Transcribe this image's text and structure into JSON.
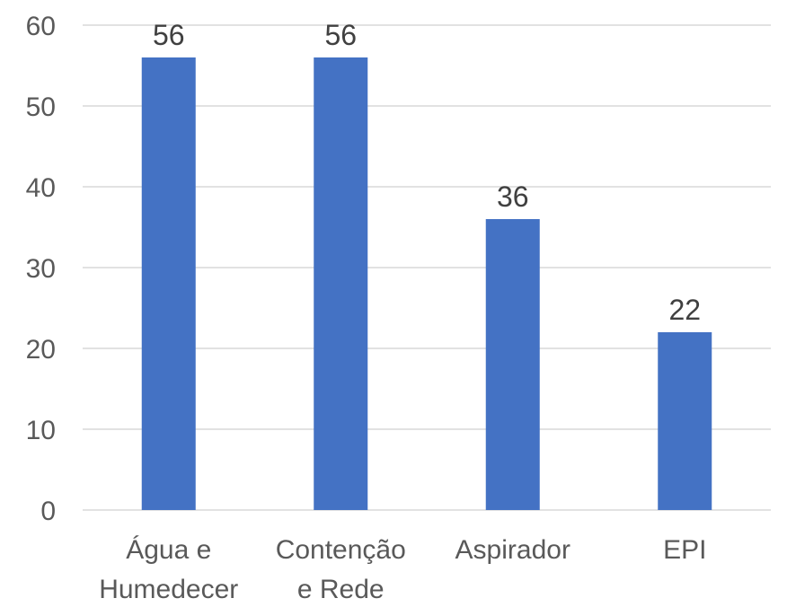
{
  "chart_data": {
    "type": "bar",
    "categories": [
      "Água e Humedecer",
      "Contenção e Rede",
      "Aspirador",
      "EPI"
    ],
    "category_label_lines": [
      [
        "Água e",
        "Humedecer"
      ],
      [
        "Contenção",
        "e Rede"
      ],
      [
        "Aspirador"
      ],
      [
        "EPI"
      ]
    ],
    "values": [
      56,
      56,
      36,
      22
    ],
    "data_labels": [
      "56",
      "56",
      "36",
      "22"
    ],
    "ylim": [
      0,
      60
    ],
    "yticks": [
      0,
      10,
      20,
      30,
      40,
      50,
      60
    ],
    "title": "",
    "xlabel": "",
    "ylabel": "",
    "grid": true,
    "legend": "none",
    "bar_color": "#4472c4"
  }
}
